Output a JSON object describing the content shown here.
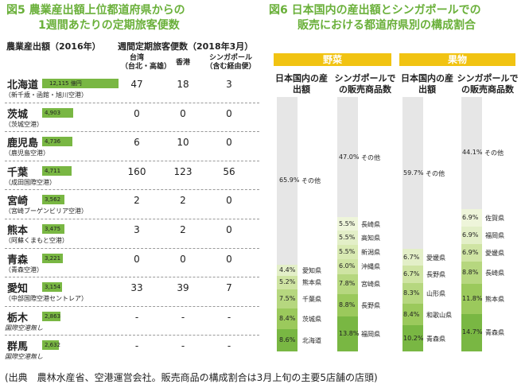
{
  "left": {
    "title_fig": "図5",
    "title_line1": "農業産出額上位都道府県からの",
    "title_line2": "1週間あたりの定期旅客便数",
    "hdr_production": "農業産出額（2016年）",
    "hdr_flights": "週間定期旅客便数（2018年3月）",
    "col_taiwan": "台湾",
    "col_taiwan_sub": "（台北・高雄）",
    "col_hongkong": "香港",
    "col_singapore": "シンガポール",
    "col_singapore_sub": "（含む経由便）",
    "unit": "億円",
    "rows": [
      {
        "pref": "北海道",
        "airport": "（新千歳・函館・旭川空港）",
        "value": "12,115",
        "value_num": 12115,
        "tw": "47",
        "hk": "18",
        "sg": "3",
        "italic": false
      },
      {
        "pref": "茨城",
        "airport": "（茨城空港）",
        "value": "4,903",
        "value_num": 4903,
        "tw": "0",
        "hk": "0",
        "sg": "0",
        "italic": false
      },
      {
        "pref": "鹿児島",
        "airport": "（鹿児島空港）",
        "value": "4,736",
        "value_num": 4736,
        "tw": "6",
        "hk": "10",
        "sg": "0",
        "italic": false
      },
      {
        "pref": "千葉",
        "airport": "（成田国際空港）",
        "value": "4,711",
        "value_num": 4711,
        "tw": "160",
        "hk": "123",
        "sg": "56",
        "italic": false
      },
      {
        "pref": "宮崎",
        "airport": "（宮崎ブーゲンビリア空港）",
        "value": "3,562",
        "value_num": 3562,
        "tw": "2",
        "hk": "2",
        "sg": "0",
        "italic": false
      },
      {
        "pref": "熊本",
        "airport": "（阿蘇くまもと空港）",
        "value": "3,475",
        "value_num": 3475,
        "tw": "3",
        "hk": "2",
        "sg": "0",
        "italic": false
      },
      {
        "pref": "青森",
        "airport": "（青森空港）",
        "value": "3,221",
        "value_num": 3221,
        "tw": "0",
        "hk": "0",
        "sg": "0",
        "italic": false
      },
      {
        "pref": "愛知",
        "airport": "（中部国際空港セントレア）",
        "value": "3,154",
        "value_num": 3154,
        "tw": "33",
        "hk": "39",
        "sg": "7",
        "italic": false
      },
      {
        "pref": "栃木",
        "airport": "国際空港無し",
        "value": "2,863",
        "value_num": 2863,
        "tw": "-",
        "hk": "-",
        "sg": "-",
        "italic": true
      },
      {
        "pref": "群馬",
        "airport": "国際空港無し",
        "value": "2,632",
        "value_num": 2632,
        "tw": "-",
        "hk": "-",
        "sg": "-",
        "italic": true
      }
    ]
  },
  "right": {
    "title_fig": "図6",
    "title_line1": "日本国内の産出額とシンガポールでの",
    "title_line2": "販売における都道府県別の構成割合",
    "band_veg": "野菜",
    "band_fruit": "果物",
    "col_domestic": "日本国内の産出額",
    "col_singapore": "シンガポールでの販売商品数",
    "veg_domestic": [
      {
        "label": "8.6%",
        "name": "北海道",
        "pct": 8.6,
        "color": "#79b743"
      },
      {
        "label": "8.4%",
        "name": "茨城県",
        "pct": 8.4,
        "color": "#9bc95c"
      },
      {
        "label": "7.5%",
        "name": "千葉県",
        "pct": 7.5,
        "color": "#b6d77f"
      },
      {
        "label": "5.2%",
        "name": "熊本県",
        "pct": 5.2,
        "color": "#cfe4a3"
      },
      {
        "label": "4.4%",
        "name": "愛知県",
        "pct": 4.4,
        "color": "#e3efc8"
      },
      {
        "label": "65.9%",
        "name": "その他",
        "pct": 65.9,
        "color": "#e6e6e6"
      }
    ],
    "veg_singapore": [
      {
        "label": "13.8%",
        "name": "福岡県",
        "pct": 13.8,
        "color": "#79b743"
      },
      {
        "label": "8.8%",
        "name": "長野県",
        "pct": 8.8,
        "color": "#9bc95c"
      },
      {
        "label": "7.8%",
        "name": "宮崎県",
        "pct": 7.8,
        "color": "#b6d77f"
      },
      {
        "label": "6.0%",
        "name": "沖縄県",
        "pct": 6.0,
        "color": "#cfe4a3"
      },
      {
        "label": "5.5%",
        "name": "新潟県",
        "pct": 5.5,
        "color": "#d9eab3"
      },
      {
        "label": "5.5%",
        "name": "高知県",
        "pct": 5.5,
        "color": "#e3efc8"
      },
      {
        "label": "5.5%",
        "name": "長崎県",
        "pct": 5.5,
        "color": "#eef5da"
      },
      {
        "label": "47.0%",
        "name": "その他",
        "pct": 47.0,
        "color": "#e6e6e6"
      }
    ],
    "fruit_domestic": [
      {
        "label": "10.2%",
        "name": "青森県",
        "pct": 10.2,
        "color": "#79b743"
      },
      {
        "label": "8.4%",
        "name": "和歌山県",
        "pct": 8.4,
        "color": "#9bc95c"
      },
      {
        "label": "8.3%",
        "name": "山形県",
        "pct": 8.3,
        "color": "#b6d77f"
      },
      {
        "label": "6.7%",
        "name": "長野県",
        "pct": 6.7,
        "color": "#cfe4a3"
      },
      {
        "label": "6.7%",
        "name": "愛媛県",
        "pct": 6.7,
        "color": "#e3efc8"
      },
      {
        "label": "59.7%",
        "name": "その他",
        "pct": 59.7,
        "color": "#e6e6e6"
      }
    ],
    "fruit_singapore": [
      {
        "label": "14.7%",
        "name": "青森県",
        "pct": 14.7,
        "color": "#79b743"
      },
      {
        "label": "11.8%",
        "name": "熊本県",
        "pct": 11.8,
        "color": "#9bc95c"
      },
      {
        "label": "8.8%",
        "name": "長崎県",
        "pct": 8.8,
        "color": "#b6d77f"
      },
      {
        "label": "6.9%",
        "name": "愛媛県",
        "pct": 6.9,
        "color": "#cfe4a3"
      },
      {
        "label": "6.9%",
        "name": "福岡県",
        "pct": 6.9,
        "color": "#e3efc8"
      },
      {
        "label": "6.9%",
        "name": "佐賀県",
        "pct": 6.9,
        "color": "#eef5da"
      },
      {
        "label": "44.1%",
        "name": "その他",
        "pct": 44.1,
        "color": "#e6e6e6"
      }
    ]
  },
  "source": "(出典　農林水産省、空港運営会社。販売商品の構成割合は3月上旬の主要5店舗の店頭)"
}
